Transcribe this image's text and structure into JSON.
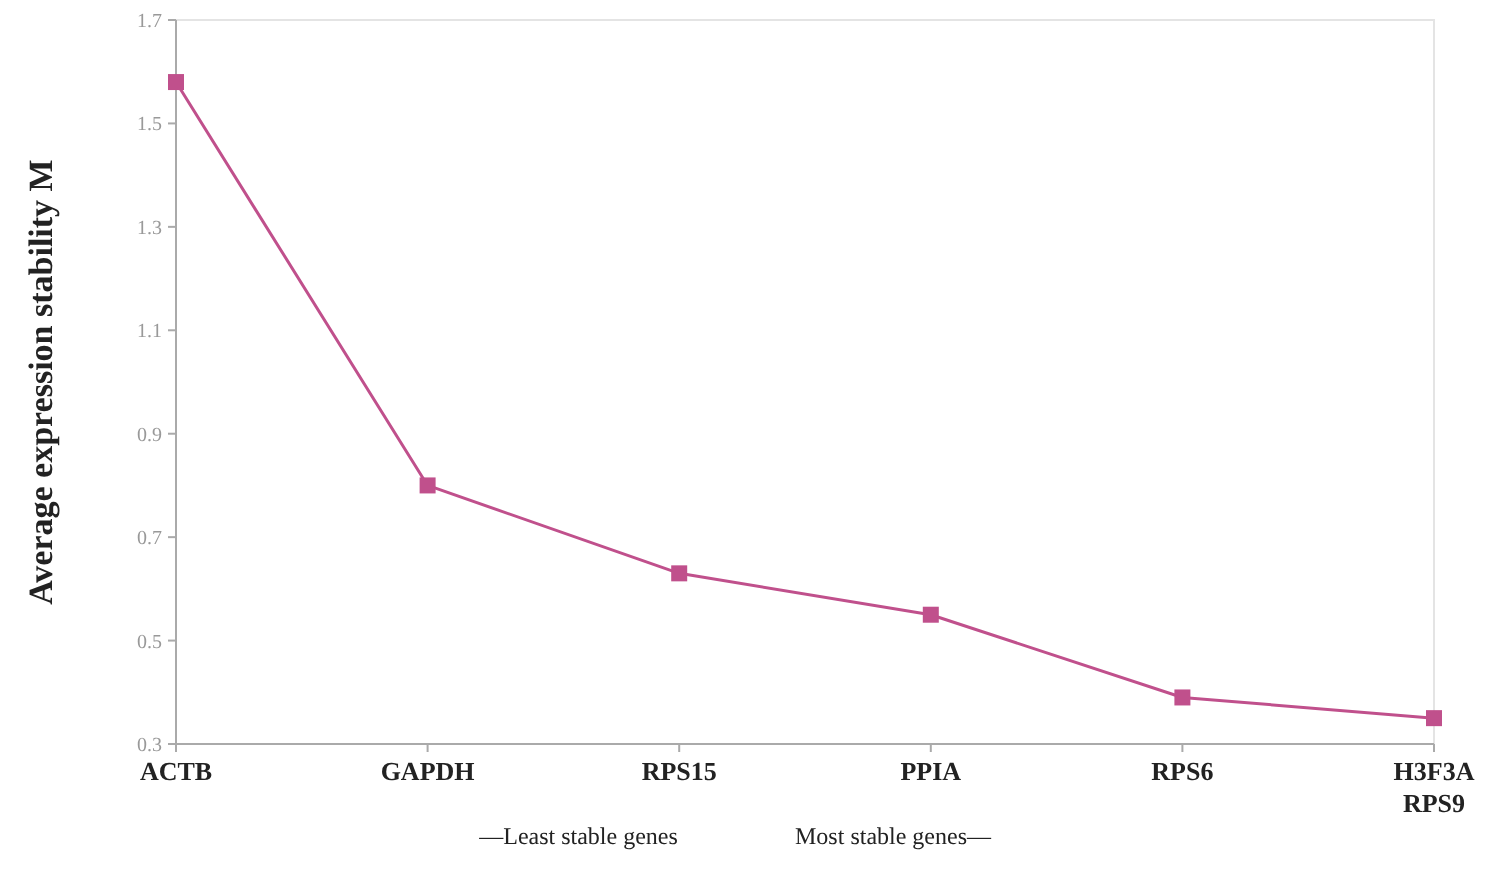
{
  "chart_data": {
    "type": "line",
    "ylabel": "Average expression stability M",
    "categories": [
      "ACTB",
      "GAPDH",
      "RPS15",
      "PPIA",
      "RPS6",
      "H3F3A\nRPS9"
    ],
    "series": [
      {
        "color": "#c0508c",
        "values": [
          1.58,
          0.8,
          0.63,
          0.55,
          0.39,
          0.35
        ]
      }
    ],
    "ylim": [
      0.3,
      1.7
    ],
    "yticks": [
      {
        "value": 0.3,
        "label": "0.3"
      },
      {
        "value": 0.5,
        "label": "0.5"
      },
      {
        "value": 0.7,
        "label": "0.7"
      },
      {
        "value": 0.9,
        "label": "0.9"
      },
      {
        "value": 1.1,
        "label": "1.1"
      },
      {
        "value": 1.3,
        "label": "1.3"
      },
      {
        "value": 1.5,
        "label": "1.5"
      },
      {
        "value": 1.7,
        "label": "1.7"
      }
    ],
    "marker": "square",
    "line_style": "solid",
    "grid": false,
    "annotations": [
      "—Least stable genes",
      "Most stable genes—"
    ]
  }
}
